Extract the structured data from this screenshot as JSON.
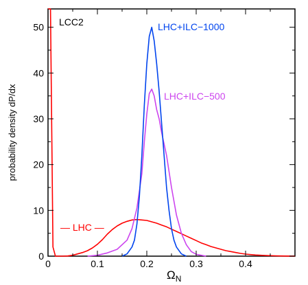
{
  "chart_data": {
    "type": "line",
    "title": "",
    "panel_label": "LCC2",
    "xlabel": "Ω",
    "xlabel_subscript": "N",
    "ylabel": "probability density dP/dx",
    "xlim": [
      0,
      0.5
    ],
    "ylim": [
      0,
      54
    ],
    "x_ticks": [
      0,
      0.1,
      0.2,
      0.3,
      0.4
    ],
    "x_tick_labels": [
      "0",
      "0.1",
      "0.2",
      "0.3",
      "0.4"
    ],
    "y_ticks": [
      0,
      10,
      20,
      30,
      40,
      50
    ],
    "y_tick_labels": [
      "0",
      "10",
      "20",
      "30",
      "40",
      "50"
    ],
    "grid": false,
    "legend": "none (series labeled inline)",
    "series": [
      {
        "name": "LHC",
        "label_text": "— LHC —",
        "color": "#ff0000",
        "x": [
          0.0,
          0.005,
          0.01,
          0.015,
          0.02,
          0.03,
          0.04,
          0.05,
          0.06,
          0.07,
          0.08,
          0.09,
          0.1,
          0.11,
          0.12,
          0.13,
          0.14,
          0.15,
          0.16,
          0.17,
          0.18,
          0.19,
          0.2,
          0.21,
          0.22,
          0.23,
          0.24,
          0.25,
          0.26,
          0.27,
          0.28,
          0.29,
          0.3,
          0.31,
          0.32,
          0.33,
          0.34,
          0.35,
          0.36,
          0.37,
          0.38,
          0.39,
          0.4,
          0.41,
          0.42,
          0.43,
          0.44,
          0.45,
          0.46,
          0.47,
          0.48,
          0.49,
          0.5
        ],
        "y": [
          54,
          54,
          2,
          0.0,
          0.0,
          0.0,
          0.05,
          0.2,
          0.5,
          0.8,
          1.2,
          1.8,
          2.6,
          3.6,
          4.8,
          5.8,
          6.6,
          7.2,
          7.6,
          7.9,
          8.0,
          7.9,
          7.8,
          7.5,
          7.2,
          6.8,
          6.4,
          5.9,
          5.4,
          4.9,
          4.4,
          3.9,
          3.4,
          2.9,
          2.5,
          2.1,
          1.8,
          1.5,
          1.2,
          1.0,
          0.8,
          0.6,
          0.45,
          0.35,
          0.25,
          0.2,
          0.15,
          0.1,
          0.07,
          0.05,
          0.03,
          0.02,
          0.01
        ]
      },
      {
        "name": "LHC+ILC-500",
        "label_text": "LHC+ILC−500",
        "color": "#cc44ee",
        "x": [
          0.08,
          0.1,
          0.12,
          0.14,
          0.16,
          0.17,
          0.18,
          0.19,
          0.195,
          0.2,
          0.205,
          0.21,
          0.215,
          0.22,
          0.225,
          0.23,
          0.24,
          0.25,
          0.26,
          0.27,
          0.28,
          0.29,
          0.3,
          0.32
        ],
        "y": [
          0.0,
          0.2,
          0.7,
          1.5,
          3.5,
          6.0,
          10.5,
          18.0,
          25.0,
          31.0,
          35.5,
          36.5,
          35.0,
          32.0,
          30.0,
          27.0,
          22.0,
          15.0,
          9.0,
          5.0,
          2.5,
          1.0,
          0.4,
          0.0
        ]
      },
      {
        "name": "LHC+ILC-1000",
        "label_text": "LHC+ILC−1000",
        "color": "#0044ee",
        "x": [
          0.15,
          0.16,
          0.17,
          0.175,
          0.18,
          0.185,
          0.19,
          0.195,
          0.2,
          0.205,
          0.21,
          0.215,
          0.22,
          0.225,
          0.23,
          0.235,
          0.24,
          0.245,
          0.25,
          0.255,
          0.26,
          0.27,
          0.28
        ],
        "y": [
          0.0,
          0.5,
          2.0,
          3.5,
          7.0,
          13.0,
          22.0,
          33.0,
          42.0,
          48.0,
          50.0,
          47.0,
          42.0,
          36.0,
          29.0,
          22.0,
          15.0,
          10.0,
          6.0,
          3.5,
          2.0,
          0.5,
          0.0
        ]
      }
    ]
  }
}
